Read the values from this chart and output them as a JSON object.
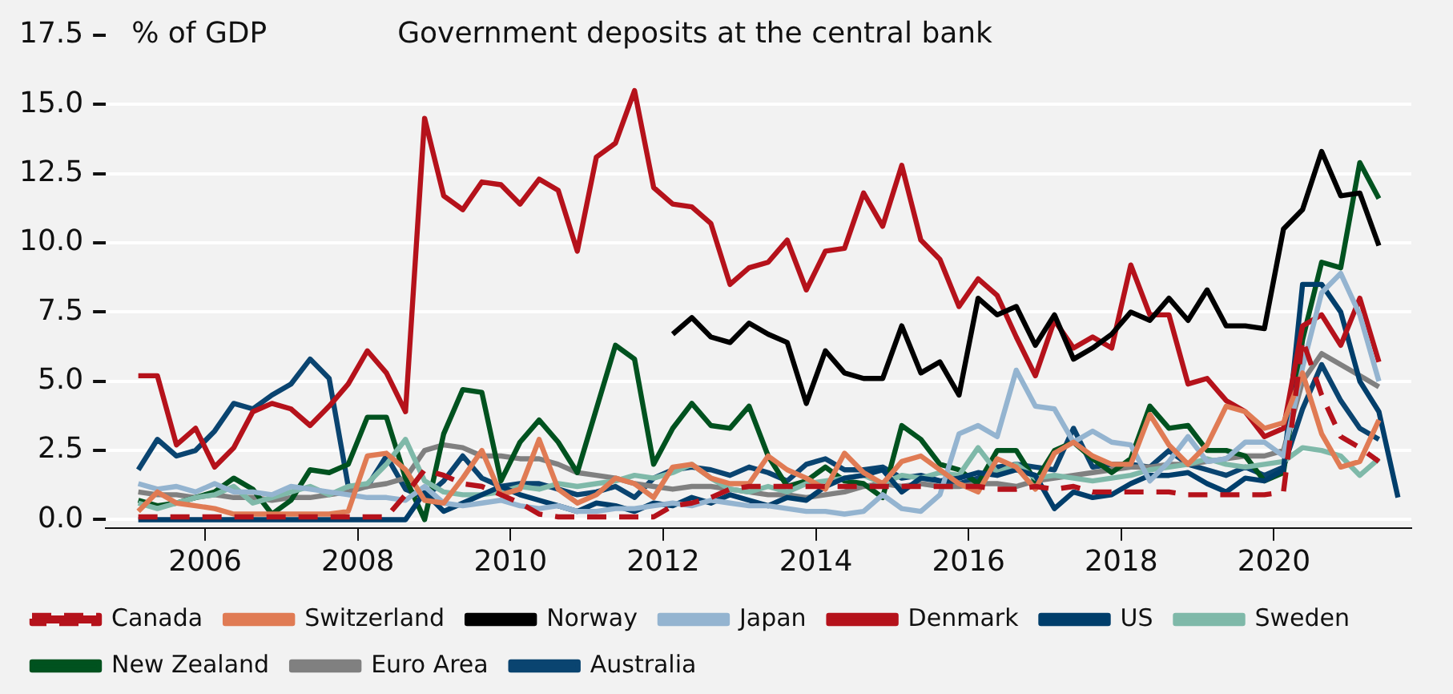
{
  "chart_data": {
    "type": "line",
    "title": "Government deposits at the central bank",
    "ylabel": "% of GDP",
    "x": [
      2005.125,
      2005.375,
      2005.625,
      2005.875,
      2006.125,
      2006.375,
      2006.625,
      2006.875,
      2007.125,
      2007.375,
      2007.625,
      2007.875,
      2008.125,
      2008.375,
      2008.625,
      2008.875,
      2009.125,
      2009.375,
      2009.625,
      2009.875,
      2010.125,
      2010.375,
      2010.625,
      2010.875,
      2011.125,
      2011.375,
      2011.625,
      2011.875,
      2012.125,
      2012.375,
      2012.625,
      2012.875,
      2013.125,
      2013.375,
      2013.625,
      2013.875,
      2014.125,
      2014.375,
      2014.625,
      2014.875,
      2015.125,
      2015.375,
      2015.625,
      2015.875,
      2016.125,
      2016.375,
      2016.625,
      2016.875,
      2017.125,
      2017.375,
      2017.625,
      2017.875,
      2018.125,
      2018.375,
      2018.625,
      2018.875,
      2019.125,
      2019.375,
      2019.625,
      2019.875,
      2020.125,
      2020.375,
      2020.625,
      2020.875,
      2021.125,
      2021.375,
      2021.625
    ],
    "xlim": [
      2004.7,
      2021.8
    ],
    "xticks": [
      2006,
      2008,
      2010,
      2012,
      2014,
      2016,
      2018,
      2020
    ],
    "ylim": [
      -0.3,
      17.5
    ],
    "yticks": [
      {
        "value": 0,
        "label": "0.0"
      },
      2.5,
      {
        "value": 5,
        "label": "5.0"
      },
      7.5,
      {
        "value": 10,
        "label": "10.0"
      },
      12.5,
      {
        "value": 15,
        "label": "15.0"
      },
      17.5
    ],
    "grid": "y",
    "legend": "bottom",
    "series": [
      {
        "name": "Canada",
        "color": "#b5121b",
        "line_style": "dashed",
        "values": [
          0.1,
          0.1,
          0.1,
          0.1,
          0.1,
          0.1,
          0.1,
          0.1,
          0.1,
          0.1,
          0.1,
          0.1,
          0.1,
          0.1,
          0.9,
          1.8,
          1.6,
          1.3,
          1.2,
          0.9,
          0.6,
          0.2,
          0.1,
          0.1,
          0.1,
          0.1,
          0.1,
          0.1,
          0.5,
          0.6,
          0.8,
          1.1,
          1.2,
          1.2,
          1.2,
          1.2,
          1.2,
          1.2,
          1.2,
          1.2,
          1.2,
          1.2,
          1.2,
          1.2,
          1.2,
          1.1,
          1.1,
          1.2,
          1.1,
          1.2,
          1.0,
          1.0,
          1.0,
          1.0,
          1.0,
          0.9,
          0.9,
          0.9,
          0.9,
          0.9,
          1.0,
          6.5,
          4.5,
          3.0,
          2.6,
          2.1,
          null
        ]
      },
      {
        "name": "Switzerland",
        "color": "#e07b54",
        "values": [
          0.3,
          1.0,
          0.6,
          0.5,
          0.4,
          0.2,
          0.2,
          0.2,
          0.2,
          0.2,
          0.2,
          0.3,
          2.3,
          2.4,
          1.8,
          0.7,
          0.6,
          1.5,
          2.5,
          0.9,
          1.1,
          2.9,
          1.1,
          0.6,
          0.9,
          1.5,
          1.3,
          0.8,
          1.9,
          2.0,
          1.5,
          1.3,
          1.3,
          2.3,
          1.8,
          1.5,
          1.1,
          2.4,
          1.7,
          1.3,
          2.1,
          2.3,
          1.8,
          1.3,
          1.0,
          2.2,
          1.9,
          1.1,
          2.4,
          2.8,
          2.3,
          2.0,
          2.0,
          3.8,
          2.7,
          2.0,
          2.7,
          4.1,
          3.9,
          3.3,
          3.5,
          5.3,
          3.1,
          1.9,
          2.1,
          3.6,
          null
        ]
      },
      {
        "name": "Norway",
        "color": "#000000",
        "values": [
          null,
          null,
          null,
          null,
          null,
          null,
          null,
          null,
          null,
          null,
          null,
          null,
          null,
          null,
          null,
          null,
          null,
          null,
          null,
          null,
          null,
          null,
          null,
          null,
          null,
          null,
          null,
          null,
          6.7,
          7.3,
          6.6,
          6.4,
          7.1,
          6.7,
          6.4,
          4.2,
          6.1,
          5.3,
          5.1,
          5.1,
          7.0,
          5.3,
          5.7,
          4.5,
          8.0,
          7.4,
          7.7,
          6.3,
          7.4,
          5.8,
          6.2,
          6.7,
          7.5,
          7.2,
          8.0,
          7.2,
          8.3,
          7.0,
          7.0,
          6.9,
          10.5,
          11.2,
          13.3,
          11.7,
          11.8,
          9.9,
          null
        ]
      },
      {
        "name": "Japan",
        "color": "#94b4d0",
        "values": [
          1.3,
          1.1,
          1.2,
          1.0,
          1.3,
          1.0,
          1.0,
          0.9,
          1.2,
          1.1,
          1.0,
          0.9,
          0.8,
          0.8,
          0.7,
          1.2,
          0.6,
          0.5,
          0.6,
          0.7,
          0.5,
          0.4,
          0.5,
          0.3,
          0.3,
          0.4,
          0.4,
          0.5,
          0.6,
          0.5,
          0.7,
          0.6,
          0.5,
          0.5,
          0.4,
          0.3,
          0.3,
          0.2,
          0.3,
          0.9,
          0.4,
          0.3,
          0.9,
          3.1,
          3.4,
          3.0,
          5.4,
          4.1,
          4.0,
          2.8,
          3.2,
          2.8,
          2.7,
          1.4,
          2.1,
          3.0,
          2.1,
          2.2,
          2.8,
          2.8,
          2.3,
          5.5,
          8.2,
          8.9,
          7.4,
          5.0,
          null
        ]
      },
      {
        "name": "Denmark",
        "color": "#b5121b",
        "values": [
          5.2,
          5.2,
          2.7,
          3.3,
          1.9,
          2.6,
          3.9,
          4.2,
          4.0,
          3.4,
          4.1,
          4.9,
          6.1,
          5.3,
          3.9,
          14.5,
          11.7,
          11.2,
          12.2,
          12.1,
          11.4,
          12.3,
          11.9,
          9.7,
          13.1,
          13.6,
          15.5,
          12.0,
          11.4,
          11.3,
          10.7,
          8.5,
          9.1,
          9.3,
          10.1,
          8.3,
          9.7,
          9.8,
          11.8,
          10.6,
          12.8,
          10.1,
          9.4,
          7.7,
          8.7,
          8.1,
          6.6,
          5.2,
          7.2,
          6.2,
          6.6,
          6.2,
          9.2,
          7.4,
          7.4,
          4.9,
          5.1,
          4.3,
          3.9,
          3.0,
          3.3,
          7.0,
          7.4,
          6.3,
          8.0,
          5.7,
          null
        ]
      },
      {
        "name": "US",
        "color": "#003e6b",
        "values": [
          0.0,
          0.0,
          0.0,
          0.0,
          0.0,
          0.0,
          0.0,
          0.0,
          0.0,
          0.0,
          0.0,
          0.0,
          0.0,
          0.0,
          0.0,
          1.0,
          0.3,
          0.6,
          0.9,
          1.2,
          0.9,
          0.7,
          0.5,
          0.3,
          0.6,
          0.5,
          0.3,
          0.6,
          0.5,
          0.8,
          0.6,
          0.9,
          0.7,
          0.5,
          0.8,
          0.7,
          1.2,
          1.5,
          1.6,
          1.8,
          1.0,
          1.5,
          1.4,
          1.5,
          1.7,
          1.6,
          1.8,
          1.6,
          0.4,
          1.0,
          0.8,
          0.9,
          1.3,
          1.6,
          1.6,
          1.7,
          1.3,
          1.0,
          1.5,
          1.4,
          1.8,
          8.5,
          8.5,
          7.5,
          5.0,
          3.9,
          0.8
        ]
      },
      {
        "name": "Sweden",
        "color": "#7fb9a9",
        "values": [
          0.6,
          0.4,
          0.6,
          0.8,
          0.9,
          1.2,
          0.6,
          0.8,
          1.0,
          1.2,
          0.9,
          1.2,
          1.3,
          2.0,
          2.9,
          1.4,
          1.0,
          0.9,
          0.9,
          1.0,
          1.2,
          1.1,
          1.3,
          1.2,
          1.3,
          1.4,
          1.6,
          1.5,
          1.7,
          2.0,
          1.5,
          1.1,
          1.0,
          1.2,
          1.0,
          1.3,
          1.4,
          1.5,
          1.6,
          1.3,
          1.6,
          1.5,
          1.7,
          1.6,
          2.6,
          1.7,
          2.0,
          1.5,
          1.6,
          1.5,
          1.4,
          1.5,
          1.6,
          1.8,
          1.9,
          2.0,
          2.2,
          2.0,
          1.9,
          2.0,
          2.1,
          2.6,
          2.5,
          2.3,
          1.6,
          2.2,
          null
        ]
      },
      {
        "name": "New Zealand",
        "color": "#00521f",
        "values": [
          0.7,
          0.5,
          0.6,
          0.8,
          1.0,
          1.5,
          1.1,
          0.2,
          0.7,
          1.8,
          1.7,
          2.0,
          3.7,
          3.7,
          1.5,
          0.0,
          3.1,
          4.7,
          4.6,
          1.4,
          2.8,
          3.6,
          2.8,
          1.7,
          4.0,
          6.3,
          5.8,
          2.0,
          3.3,
          4.2,
          3.4,
          3.3,
          4.1,
          2.3,
          1.2,
          1.4,
          1.9,
          1.4,
          1.3,
          0.8,
          3.4,
          2.9,
          2.0,
          1.8,
          1.3,
          2.5,
          2.5,
          1.4,
          2.5,
          2.8,
          2.2,
          1.7,
          2.2,
          4.1,
          3.3,
          3.4,
          2.5,
          2.5,
          2.3,
          1.4,
          1.7,
          6.5,
          9.3,
          9.1,
          12.9,
          11.6,
          null
        ]
      },
      {
        "name": "Euro Area",
        "color": "#808080",
        "values": [
          1.0,
          0.9,
          0.9,
          0.8,
          0.9,
          0.8,
          0.8,
          0.7,
          0.8,
          0.8,
          0.9,
          1.0,
          1.2,
          1.3,
          1.5,
          2.5,
          2.7,
          2.6,
          2.3,
          2.3,
          2.2,
          2.2,
          2.0,
          1.7,
          1.6,
          1.5,
          1.3,
          1.2,
          1.1,
          1.2,
          1.2,
          1.1,
          1.0,
          0.9,
          0.9,
          0.8,
          0.9,
          1.0,
          1.2,
          1.3,
          1.2,
          1.3,
          1.2,
          1.2,
          1.3,
          1.3,
          1.2,
          1.4,
          1.5,
          1.6,
          1.7,
          1.8,
          1.9,
          1.9,
          2.0,
          2.0,
          2.1,
          2.2,
          2.3,
          2.3,
          2.5,
          5.0,
          6.0,
          5.6,
          5.2,
          4.8,
          null
        ]
      },
      {
        "name": "Australia",
        "color": "#0a4470",
        "values": [
          1.8,
          2.9,
          2.3,
          2.5,
          3.2,
          4.2,
          4.0,
          4.5,
          4.9,
          5.8,
          5.1,
          1.2,
          1.2,
          2.3,
          1.1,
          0.8,
          1.4,
          2.3,
          1.5,
          1.2,
          1.3,
          1.3,
          1.1,
          0.9,
          1.0,
          1.2,
          0.8,
          1.5,
          1.8,
          1.9,
          1.8,
          1.6,
          1.9,
          1.7,
          1.4,
          2.0,
          2.2,
          1.8,
          1.8,
          1.9,
          1.5,
          1.6,
          1.4,
          1.3,
          1.5,
          1.9,
          2.0,
          1.9,
          1.8,
          3.3,
          1.9,
          2.0,
          2.0,
          1.9,
          2.5,
          2.0,
          1.8,
          1.6,
          1.9,
          1.6,
          1.9,
          4.0,
          5.6,
          4.3,
          3.3,
          2.9,
          null
        ]
      }
    ]
  }
}
